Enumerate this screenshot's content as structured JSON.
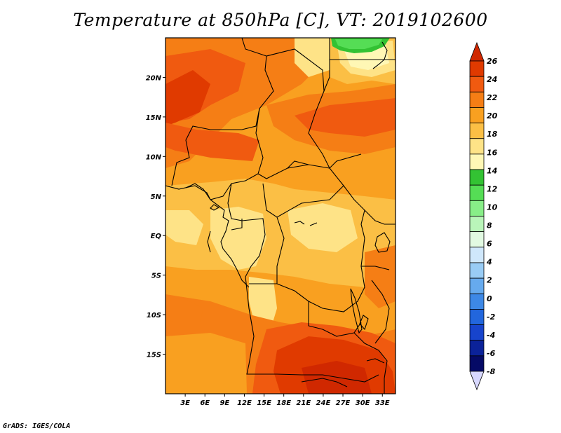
{
  "title": "Temperature at 850hPa [C], VT: 2019102600",
  "footer": "GrADS: IGES/COLA",
  "map": {
    "lat_labels": [
      "20N",
      "15N",
      "10N",
      "5N",
      "EQ",
      "5S",
      "10S",
      "15S"
    ],
    "lon_labels": [
      "3E",
      "6E",
      "9E",
      "12E",
      "15E",
      "18E",
      "21E",
      "24E",
      "27E",
      "30E",
      "33E"
    ],
    "lat_values": [
      20,
      15,
      10,
      5,
      0,
      -5,
      -10,
      -15
    ],
    "lon_values": [
      3,
      6,
      9,
      12,
      15,
      18,
      21,
      24,
      27,
      30,
      33
    ],
    "lon_range": [
      0,
      35
    ],
    "lat_range": [
      -20,
      25
    ]
  },
  "colorbar": {
    "labels": [
      "26",
      "24",
      "22",
      "20",
      "18",
      "16",
      "14",
      "12",
      "10",
      "8",
      "6",
      "4",
      "2",
      "0",
      "-2",
      "-4",
      "-6",
      "-8"
    ],
    "colors": [
      "#e03a00",
      "#f05a10",
      "#f57e15",
      "#f9a020",
      "#fbbf45",
      "#fee387",
      "#fff7b5",
      "#33c233",
      "#55dd55",
      "#88ee88",
      "#b9f5b9",
      "#e2fae2",
      "#cfe7fb",
      "#99ccf5",
      "#66aaee",
      "#3d88e6",
      "#2266dd",
      "#1744cc",
      "#0b2299",
      "#050a66"
    ],
    "top_color": "#d02800",
    "bottom_color": "#d8d8ff"
  },
  "palette": {
    "c26": "#e03a00",
    "c24": "#f05a10",
    "c22": "#f57e15",
    "c20": "#f9a020",
    "c18": "#fbbf45",
    "c16": "#fee387",
    "c14": "#fff7b5",
    "c12": "#33c233"
  }
}
